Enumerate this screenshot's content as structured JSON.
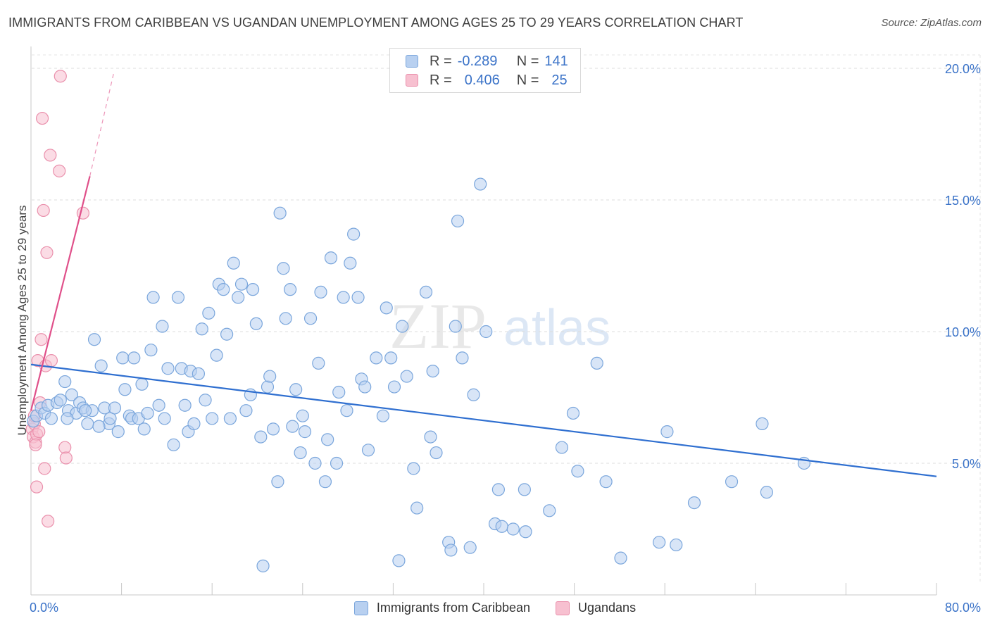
{
  "title": "IMMIGRANTS FROM CARIBBEAN VS UGANDAN UNEMPLOYMENT AMONG AGES 25 TO 29 YEARS CORRELATION CHART",
  "source": "Source: ZipAtlas.com",
  "watermark": {
    "zip": "ZIP",
    "atlas": "atlas"
  },
  "legend_top": {
    "rows": [
      {
        "r_label": "R =",
        "r_value": "-0.289",
        "n_label": "N =",
        "n_value": "141"
      },
      {
        "r_label": "R =",
        "r_value": "0.406",
        "n_label": "N =",
        "n_value": "25"
      }
    ]
  },
  "chart_data": {
    "type": "scatter",
    "title": "IMMIGRANTS FROM CARIBBEAN VS UGANDAN UNEMPLOYMENT AMONG AGES 25 TO 29 YEARS CORRELATION CHART",
    "xlabel": "",
    "ylabel": "Unemployment Among Ages 25 to 29 years",
    "xlim": [
      0,
      80
    ],
    "ylim": [
      0,
      20.5
    ],
    "x_tick_labels": [
      "0.0%",
      "80.0%"
    ],
    "y_ticks": [
      5,
      10,
      15,
      20
    ],
    "y_tick_labels": [
      "5.0%",
      "10.0%",
      "15.0%",
      "20.0%"
    ],
    "grid": true,
    "legend_position": "bottom",
    "colors": {
      "caribbean_fill": "#b8d0f0",
      "caribbean_stroke": "#7aa6dc",
      "caribbean_line": "#2f6fd0",
      "ugandan_fill": "#f7c0d0",
      "ugandan_stroke": "#ea90ac",
      "ugandan_line": "#e0508a",
      "tick_label": "#3b73c8"
    },
    "series": [
      {
        "name": "Immigrants from Caribbean",
        "r": -0.289,
        "n": 141,
        "trend": {
          "x0": 0,
          "y0": 8.75,
          "x1": 80,
          "y1": 4.5
        },
        "points": [
          [
            0.2,
            6.6
          ],
          [
            0.5,
            6.8
          ],
          [
            0.9,
            7.1
          ],
          [
            1.2,
            6.9
          ],
          [
            1.5,
            7.2
          ],
          [
            1.8,
            6.7
          ],
          [
            2.3,
            7.3
          ],
          [
            2.6,
            7.4
          ],
          [
            3.0,
            8.1
          ],
          [
            3.3,
            7.0
          ],
          [
            3.6,
            7.6
          ],
          [
            4.0,
            6.9
          ],
          [
            4.3,
            7.3
          ],
          [
            4.6,
            7.1
          ],
          [
            5.0,
            6.5
          ],
          [
            5.4,
            7.0
          ],
          [
            5.6,
            9.7
          ],
          [
            6.2,
            8.7
          ],
          [
            6.5,
            7.1
          ],
          [
            6.9,
            6.5
          ],
          [
            7.0,
            6.7
          ],
          [
            7.4,
            7.1
          ],
          [
            7.7,
            6.2
          ],
          [
            8.1,
            9.0
          ],
          [
            8.3,
            7.8
          ],
          [
            8.7,
            6.8
          ],
          [
            8.9,
            6.7
          ],
          [
            9.1,
            9.0
          ],
          [
            9.5,
            6.7
          ],
          [
            9.8,
            8.0
          ],
          [
            10.0,
            6.3
          ],
          [
            10.3,
            6.9
          ],
          [
            10.6,
            9.3
          ],
          [
            10.8,
            11.3
          ],
          [
            11.3,
            7.2
          ],
          [
            11.6,
            10.2
          ],
          [
            11.8,
            6.7
          ],
          [
            12.1,
            8.6
          ],
          [
            12.6,
            5.7
          ],
          [
            13.0,
            11.3
          ],
          [
            13.3,
            8.6
          ],
          [
            13.6,
            7.2
          ],
          [
            13.9,
            6.2
          ],
          [
            14.1,
            8.5
          ],
          [
            14.4,
            6.5
          ],
          [
            14.8,
            8.4
          ],
          [
            15.1,
            10.1
          ],
          [
            15.4,
            7.4
          ],
          [
            15.7,
            10.7
          ],
          [
            16.0,
            6.7
          ],
          [
            16.4,
            9.1
          ],
          [
            16.6,
            11.8
          ],
          [
            17.0,
            11.6
          ],
          [
            17.3,
            9.9
          ],
          [
            17.6,
            6.7
          ],
          [
            17.9,
            12.6
          ],
          [
            18.3,
            11.3
          ],
          [
            18.6,
            11.8
          ],
          [
            19.0,
            7.0
          ],
          [
            19.4,
            7.6
          ],
          [
            19.6,
            11.6
          ],
          [
            19.9,
            10.3
          ],
          [
            20.3,
            6.0
          ],
          [
            20.5,
            1.1
          ],
          [
            20.9,
            7.9
          ],
          [
            21.1,
            8.3
          ],
          [
            21.4,
            6.3
          ],
          [
            21.8,
            4.3
          ],
          [
            22.0,
            14.5
          ],
          [
            22.3,
            12.4
          ],
          [
            22.5,
            10.5
          ],
          [
            22.9,
            11.6
          ],
          [
            23.1,
            6.4
          ],
          [
            23.4,
            7.8
          ],
          [
            23.8,
            5.4
          ],
          [
            24.0,
            6.8
          ],
          [
            24.2,
            6.2
          ],
          [
            24.7,
            10.5
          ],
          [
            25.1,
            5.0
          ],
          [
            25.4,
            8.8
          ],
          [
            25.6,
            11.5
          ],
          [
            26.0,
            4.3
          ],
          [
            26.2,
            5.9
          ],
          [
            26.5,
            12.8
          ],
          [
            27.0,
            5.0
          ],
          [
            27.2,
            7.7
          ],
          [
            27.6,
            11.3
          ],
          [
            27.9,
            7.0
          ],
          [
            28.2,
            12.6
          ],
          [
            28.5,
            13.7
          ],
          [
            28.9,
            11.3
          ],
          [
            29.2,
            8.2
          ],
          [
            29.5,
            7.9
          ],
          [
            29.8,
            5.5
          ],
          [
            30.5,
            9.0
          ],
          [
            31.1,
            6.8
          ],
          [
            31.4,
            10.9
          ],
          [
            31.8,
            9.0
          ],
          [
            32.1,
            7.9
          ],
          [
            32.5,
            1.3
          ],
          [
            32.8,
            10.2
          ],
          [
            33.2,
            8.3
          ],
          [
            33.8,
            4.8
          ],
          [
            34.1,
            3.3
          ],
          [
            34.9,
            11.5
          ],
          [
            35.3,
            6.0
          ],
          [
            35.5,
            8.5
          ],
          [
            35.8,
            5.4
          ],
          [
            36.9,
            2.0
          ],
          [
            37.1,
            1.7
          ],
          [
            37.5,
            10.2
          ],
          [
            37.7,
            14.2
          ],
          [
            38.1,
            9.0
          ],
          [
            38.8,
            1.8
          ],
          [
            39.1,
            7.6
          ],
          [
            39.7,
            15.6
          ],
          [
            40.2,
            10.0
          ],
          [
            41.0,
            2.7
          ],
          [
            41.3,
            4.0
          ],
          [
            41.6,
            2.6
          ],
          [
            42.6,
            2.5
          ],
          [
            43.6,
            4.0
          ],
          [
            43.7,
            2.4
          ],
          [
            45.8,
            3.2
          ],
          [
            46.9,
            5.6
          ],
          [
            47.9,
            6.9
          ],
          [
            48.3,
            4.7
          ],
          [
            50.0,
            8.8
          ],
          [
            50.8,
            4.3
          ],
          [
            52.1,
            1.4
          ],
          [
            55.5,
            2.0
          ],
          [
            56.2,
            6.2
          ],
          [
            57.0,
            1.9
          ],
          [
            58.6,
            3.5
          ],
          [
            61.9,
            4.3
          ],
          [
            64.6,
            6.5
          ],
          [
            65.0,
            3.9
          ],
          [
            68.3,
            5.0
          ],
          [
            3.2,
            6.7
          ],
          [
            6.0,
            6.4
          ],
          [
            4.8,
            7.0
          ]
        ]
      },
      {
        "name": "Ugandans",
        "r": 0.406,
        "n": 25,
        "trend": {
          "x0": 0,
          "y0": 7.0,
          "x1": 5.2,
          "y1": 15.9,
          "dash_x1": 7.3,
          "dash_y1": 19.8
        },
        "points": [
          [
            0.1,
            6.3
          ],
          [
            0.2,
            6.0
          ],
          [
            0.3,
            6.5
          ],
          [
            0.4,
            5.8
          ],
          [
            0.5,
            6.1
          ],
          [
            0.5,
            4.1
          ],
          [
            0.6,
            8.9
          ],
          [
            0.8,
            7.3
          ],
          [
            0.9,
            9.7
          ],
          [
            1.0,
            18.1
          ],
          [
            1.1,
            14.6
          ],
          [
            1.3,
            8.7
          ],
          [
            1.4,
            13.0
          ],
          [
            1.5,
            2.8
          ],
          [
            1.7,
            16.7
          ],
          [
            1.8,
            8.9
          ],
          [
            1.2,
            4.8
          ],
          [
            2.5,
            16.1
          ],
          [
            2.6,
            19.7
          ],
          [
            3.0,
            5.6
          ],
          [
            3.1,
            5.2
          ],
          [
            4.6,
            14.5
          ],
          [
            0.3,
            6.8
          ],
          [
            0.7,
            6.2
          ],
          [
            0.4,
            5.7
          ]
        ]
      }
    ]
  },
  "legend_bottom": [
    {
      "label": "Immigrants from Caribbean"
    },
    {
      "label": "Ugandans"
    }
  ]
}
